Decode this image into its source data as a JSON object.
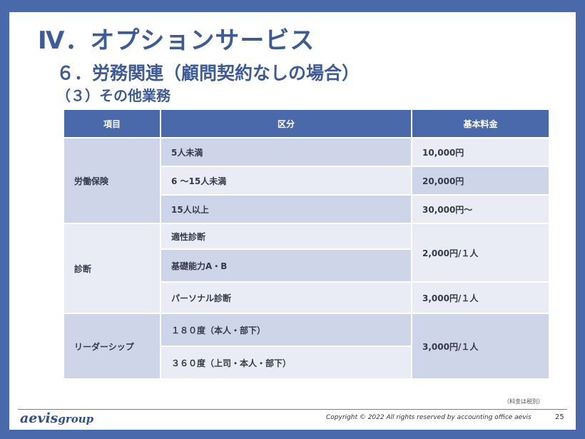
{
  "title": "Ⅳ．オプションサービス",
  "subtitle": "６．労務関連（顧問契約なしの場合）",
  "section": "（３）その他業務",
  "table": {
    "headers": [
      "項目",
      "区分",
      "基本料金"
    ],
    "groups": [
      {
        "category": "労働保険",
        "rows": [
          {
            "division": "5人未満",
            "fee": "10,000円"
          },
          {
            "division": "6 ～15人未満",
            "fee": "20,000円"
          },
          {
            "division": "15人以上",
            "fee": "30,000円～"
          }
        ]
      },
      {
        "category": "診断",
        "rows": [
          {
            "division": "適性診断",
            "fee": "2,000円/１人"
          },
          {
            "division": "基礎能力A・B"
          },
          {
            "division": "パーソナル診断",
            "fee": "3,000円/１人"
          }
        ]
      },
      {
        "category": "リーダーシップ",
        "rows": [
          {
            "division": "１８０度（本人・部下）",
            "fee": "3,000円/１人"
          },
          {
            "division": "３６０度（上司・本人・部下）"
          }
        ]
      }
    ]
  },
  "tax_note": "（料金は税別）",
  "footer": {
    "logo_main": "aevis",
    "logo_group": "group",
    "copyright": "Copyright © 2022 All rights reserved by accounting office aevis",
    "page_number": "25"
  },
  "colors": {
    "frame": "#4a69aa",
    "heading": "#3d5a99",
    "header_bg": "#4a69aa",
    "row_dark": "#cfd5e8",
    "row_light": "#e9ecf4"
  }
}
